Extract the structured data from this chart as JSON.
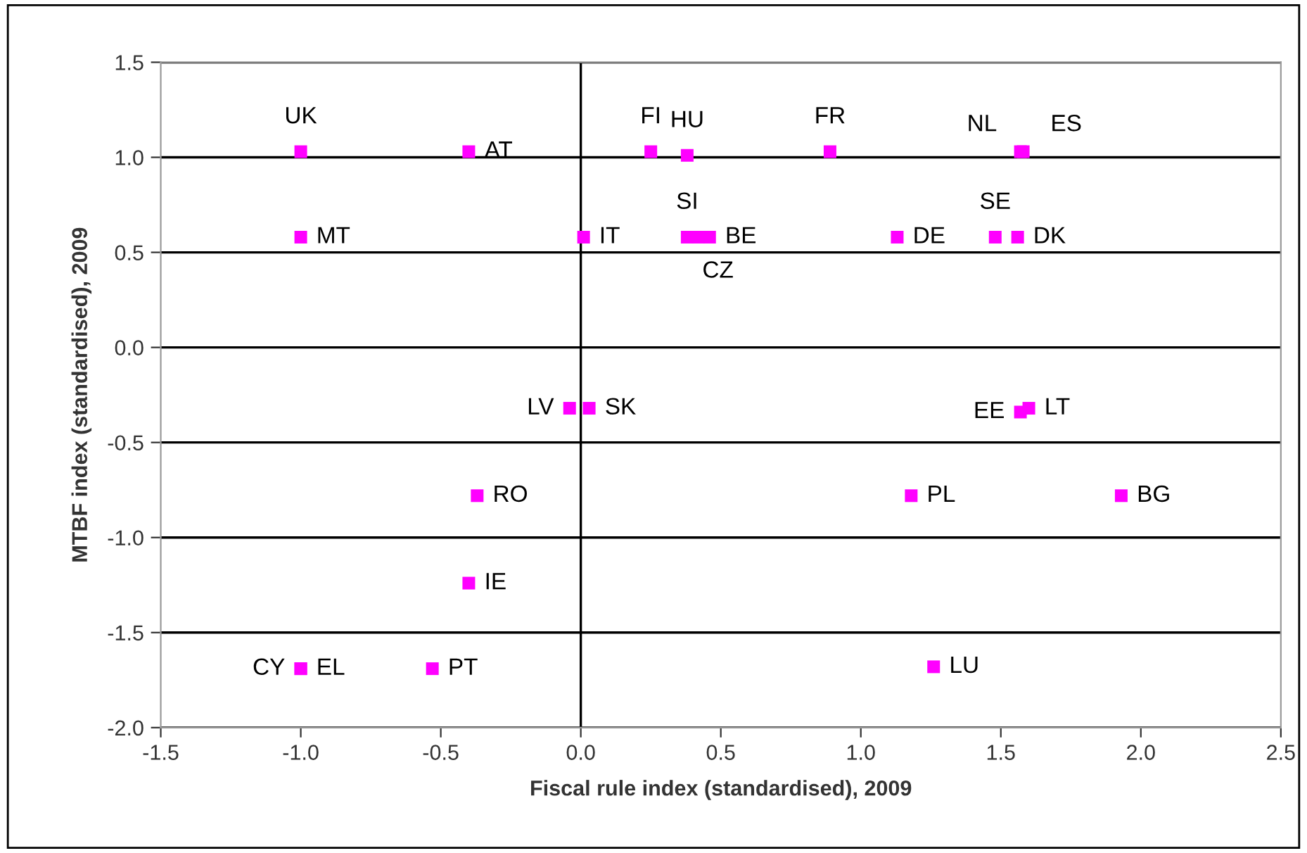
{
  "chart_data": {
    "type": "scatter",
    "xlabel": "Fiscal rule index (standardised), 2009",
    "ylabel": "MTBF index (standardised), 2009",
    "xlim": [
      -1.5,
      2.5
    ],
    "xticks": [
      {
        "value": -1.5,
        "label": "-1.5"
      },
      {
        "value": -1.0,
        "label": "-1.0"
      },
      {
        "value": -0.5,
        "label": "-0.5"
      },
      {
        "value": 0.0,
        "label": "0.0"
      },
      {
        "value": 0.5,
        "label": "0.5"
      },
      {
        "value": 1.0,
        "label": "1.0"
      },
      {
        "value": 1.5,
        "label": "1.5"
      },
      {
        "value": 2.0,
        "label": "2.0"
      },
      {
        "value": 2.5,
        "label": "2.5"
      }
    ],
    "ylim": [
      -2.0,
      1.5
    ],
    "yticks": [
      {
        "value": -2.0,
        "label": "-2.0"
      },
      {
        "value": -1.5,
        "label": "-1.5"
      },
      {
        "value": -1.0,
        "label": "-1.0"
      },
      {
        "value": -0.5,
        "label": "-0.5"
      },
      {
        "value": 0.0,
        "label": "0.0"
      },
      {
        "value": 0.5,
        "label": "0.5"
      },
      {
        "value": 1.0,
        "label": "1.0"
      },
      {
        "value": 1.5,
        "label": "1.5"
      }
    ],
    "grid": "y",
    "marker": "square",
    "legend": false,
    "ref_lines": [
      {
        "axis": "x",
        "value": 0,
        "color": "#000000"
      }
    ],
    "series": [
      {
        "color": "#ff00ff",
        "x": [
          -1.0,
          -0.4,
          0.25,
          0.38,
          0.89,
          1.57,
          1.58,
          -1.0,
          0.01,
          0.38,
          0.42,
          0.46,
          1.13,
          1.48,
          1.56,
          -0.04,
          0.03,
          1.57,
          1.6,
          -0.37,
          1.18,
          1.93,
          -0.4,
          -1.0,
          -1.0,
          -0.53,
          1.26
        ],
        "values": [
          1.03,
          1.03,
          1.03,
          1.01,
          1.03,
          1.03,
          1.03,
          0.58,
          0.58,
          0.58,
          0.58,
          0.58,
          0.58,
          0.58,
          0.58,
          -0.32,
          -0.32,
          -0.34,
          -0.32,
          -0.78,
          -0.78,
          -0.78,
          -1.24,
          -1.69,
          -1.69,
          -1.69,
          -1.68
        ],
        "value_labels": [
          "UK",
          "AT",
          "FI",
          "HU",
          "FR",
          "NL",
          "ES",
          "MT",
          "IT",
          "SI",
          "CZ",
          "BE",
          "DE",
          "SE",
          "DK",
          "LV",
          "SK",
          "EE",
          "LT",
          "RO",
          "PL",
          "BG",
          "IE",
          "CY",
          "EL",
          "PT",
          "LU"
        ]
      }
    ]
  }
}
